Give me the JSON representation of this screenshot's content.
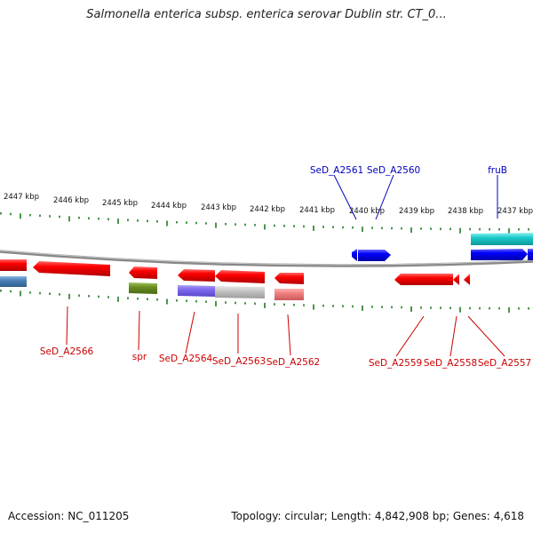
{
  "title": "Salmonella enterica subsp. enterica serovar Dublin str. CT_0...",
  "footer": {
    "accession": "Accession: NC_011205",
    "summary": "Topology: circular; Length: 4,842,908 bp; Genes: 4,618"
  },
  "scale_labels": [
    "2447 kbp",
    "2446 kbp",
    "2445 kbp",
    "2444 kbp",
    "2443 kbp",
    "2442 kbp",
    "2441 kbp",
    "2440 kbp",
    "2439 kbp",
    "2438 kbp",
    "2437 kbp"
  ],
  "genes_forward": [
    "SeD_A2561",
    "SeD_A2560",
    "fruB"
  ],
  "genes_reverse": [
    "SeD_A2566",
    "spr",
    "SeD_A2564",
    "SeD_A2563",
    "SeD_A2562",
    "SeD_A2559",
    "SeD_A2558",
    "SeD_A2557"
  ],
  "colors": {
    "forward_cds": "#0000ee",
    "reverse_cds": "#ee0000",
    "forward_label": "#0000bb",
    "reverse_label": "#cc0000",
    "teal_feature": "#19c9c9",
    "olive_feature": "#6b8e23",
    "tick": "#1f7a1f",
    "backbone": "#888888"
  }
}
